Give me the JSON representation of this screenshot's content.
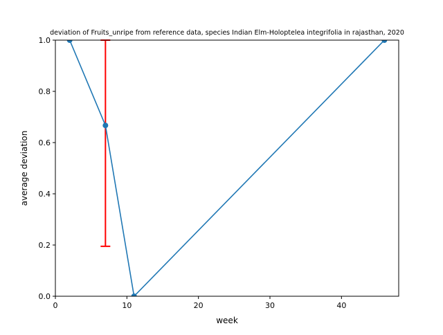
{
  "chart_data": {
    "type": "line",
    "title": "deviation of Fruits_unripe from reference data, species Indian Elm-Holoptelea integrifolia in rajasthan, 2020",
    "xlabel": "week",
    "ylabel": "average deviation",
    "xlim": [
      0,
      48
    ],
    "ylim": [
      0.0,
      1.0
    ],
    "xticks": [
      0,
      10,
      20,
      30,
      40
    ],
    "xtick_labels": [
      "0",
      "10",
      "20",
      "30",
      "40"
    ],
    "yticks": [
      0.0,
      0.2,
      0.4,
      0.6,
      0.8,
      1.0
    ],
    "ytick_labels": [
      "0.0",
      "0.2",
      "0.4",
      "0.6",
      "0.8",
      "1.0"
    ],
    "grid": false,
    "series": [
      {
        "x": [
          2,
          7,
          11,
          46
        ],
        "y": [
          1.0,
          0.667,
          0.0,
          1.0
        ],
        "color": "#1f77b4",
        "marker": "circle"
      }
    ],
    "error_bars": [
      {
        "x": 7,
        "y_low": 0.195,
        "y_high": 1.0,
        "color": "#ff0000"
      }
    ]
  }
}
